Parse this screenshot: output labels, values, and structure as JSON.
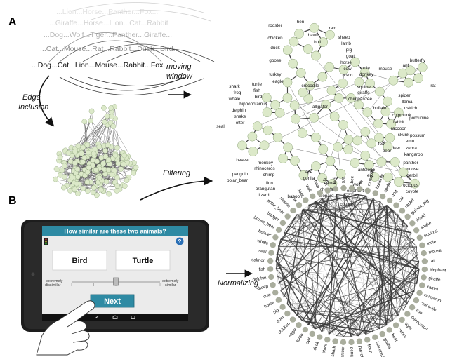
{
  "panels": {
    "a": "A",
    "b": "B"
  },
  "stream": {
    "line1": "...Dog...Cat...Lion...Mouse...Rabbit...Fox...",
    "line2": "...Cat...Mouse...Rat...Rabbit...Duck...Bird...",
    "line3": "...Dog...Wolf...Tiger...Panther...Giraffe...",
    "line4": "...Giraffe...Horse...Lion...Cat...Rabbit",
    "line5": "...Lion...Horse...Panther...Fox..."
  },
  "arrows": {
    "edge_inclusion_1": "Edge",
    "edge_inclusion_2": "Inclusion",
    "moving_window_1": "moving",
    "moving_window_2": "window",
    "filtering": "Filtering",
    "normalizing": "Normalizing"
  },
  "network_labels": [
    "rooster",
    "hen",
    "hawk",
    "bull",
    "ram",
    "chicken",
    "duck",
    "goose",
    "sheep",
    "lamb",
    "pig",
    "goat",
    "horse",
    "cow",
    "bison",
    "mule",
    "donkey",
    "mouse",
    "ant",
    "butterfly",
    "turkey",
    "eagle",
    "crocodile",
    "rat",
    "squirrel",
    "giraffe",
    "chimpanzee",
    "turtle",
    "fish",
    "bird",
    "hippopotamus",
    "shark",
    "frog",
    "whale",
    "alligator",
    "spider",
    "llama",
    "ostrich",
    "chipmunk",
    "porcupine",
    "delphin",
    "snake",
    "otter",
    "seal",
    "buffalo",
    "rabbit",
    "raccoon",
    "skunk",
    "emu",
    "possum",
    "fox",
    "bear",
    "deer",
    "zebra",
    "kangaroo",
    "beaver",
    "monkey",
    "rhinoceros",
    "chimp",
    "penguin",
    "polar_bear",
    "lion",
    "orangutan",
    "lizard",
    "ape",
    "gorilla",
    "antelope",
    "elk",
    "panther",
    "moose",
    "gerbil",
    "octopus",
    "coyote",
    "baboon",
    "camel",
    "cheetah",
    "leopard",
    "wolf",
    "elephant",
    "tiger",
    "cougar"
  ],
  "tablet": {
    "question": "How similar are these two animals?",
    "help": "?",
    "left_animal": "Bird",
    "right_animal": "Turtle",
    "scale_left_1": "extremely",
    "scale_left_2": "dissimilar",
    "scale_right_1": "extremely",
    "scale_right_2": "similar",
    "next": "Next",
    "slider_value": 0.5
  },
  "circle_labels": [
    "ant",
    "bee",
    "fly",
    "mosquito",
    "butterfly",
    "spider",
    "dog",
    "cat",
    "rabbit",
    "guinea_pig",
    "lizard",
    "snake",
    "squirrel",
    "mole",
    "mouse",
    "rat",
    "elephant",
    "giraffe",
    "camel",
    "kangaroo",
    "crocodile",
    "lion",
    "rhinoceros",
    "tiger",
    "zebra",
    "bear",
    "gorilla",
    "blackbird",
    "finch",
    "parrot",
    "penguin",
    "sparrow",
    "shark",
    "stork",
    "duck",
    "owl",
    "turtle",
    "eagle",
    "chicken",
    "goat",
    "pig",
    "horse",
    "cow",
    "sheep",
    "dolphin",
    "fish",
    "salmon",
    "seal",
    "whale",
    "beaver",
    "brown_bear",
    "badger",
    "polar_bear",
    "moose",
    "fox",
    "deer",
    "wolf",
    "boar",
    "lynx",
    "hen"
  ],
  "colors": {
    "node_fill": "#dce9c9",
    "node_stroke": "#8da37a",
    "circle_dot": "#a9ad9d",
    "edge": "#3a3a3a",
    "screen_header": "#2e8aa3",
    "next_button": "#2e8aa3"
  }
}
